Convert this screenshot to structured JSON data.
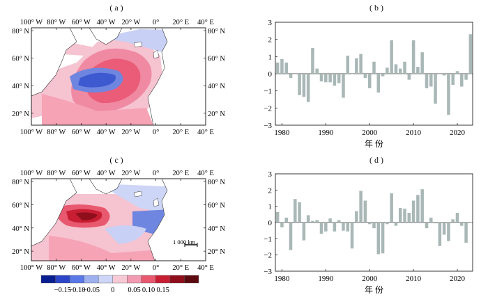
{
  "panels": {
    "a": "( a )",
    "b": "( b )",
    "c": "( c )",
    "d": "( d )"
  },
  "maps": {
    "lon_ticks": [
      "100° W",
      "80° W",
      "60° W",
      "40° W",
      "20° W",
      "0°",
      "20° E",
      "40° E"
    ],
    "lat_ticks": [
      "80° N",
      "60° N",
      "40° N",
      "20° N"
    ],
    "scale_bar": "1 000 km"
  },
  "colorbar": {
    "ticks": [
      "−0.15",
      "−0.10",
      "−0.05",
      "0",
      "0.05",
      "0.10",
      "0.15"
    ],
    "colors": [
      "#0a1f8f",
      "#2c45c8",
      "#5a78e6",
      "#9fb0ef",
      "#cdd6f7",
      "#f7c9d6",
      "#f19ab2",
      "#e8586f",
      "#c81e33",
      "#8f0e1c",
      "#5c0a10"
    ]
  },
  "colors": {
    "bar": "#a9b8b6",
    "ocean_pos": "#f28ba1",
    "ocean_pos_strong": "#ea5c78",
    "ocean_neg": "#c9d0f5",
    "ocean_neg_strong": "#6f86e0"
  },
  "chart_data": [
    {
      "type": "bar",
      "panel": "b",
      "x": [
        1979,
        1980,
        1981,
        1982,
        1983,
        1984,
        1985,
        1986,
        1987,
        1988,
        1989,
        1990,
        1991,
        1992,
        1993,
        1994,
        1995,
        1996,
        1997,
        1998,
        1999,
        2000,
        2001,
        2002,
        2003,
        2004,
        2005,
        2006,
        2007,
        2008,
        2009,
        2010,
        2011,
        2012,
        2013,
        2014,
        2015,
        2016,
        2017,
        2018,
        2019,
        2020,
        2021,
        2022,
        2023
      ],
      "values": [
        0.65,
        0.85,
        0.65,
        -0.25,
        0.0,
        -1.25,
        -1.35,
        -1.65,
        1.5,
        0.3,
        -0.45,
        -0.5,
        -0.5,
        -0.7,
        -0.55,
        -1.4,
        1.05,
        0.0,
        0.9,
        1.15,
        -0.25,
        -0.85,
        0.7,
        -1.1,
        -0.15,
        0.35,
        1.95,
        0.55,
        0.3,
        0.7,
        -0.35,
        1.95,
        0.4,
        1.25,
        -0.85,
        -0.75,
        -1.75,
        0.0,
        -0.1,
        -2.4,
        -0.65,
        0.15,
        -0.75,
        -0.35,
        2.3
      ],
      "xticks": [
        "1980",
        "1990",
        "2000",
        "2010",
        "2020"
      ],
      "yticks": [
        "3",
        "2",
        "1",
        "0",
        "−1",
        "−2",
        "−3"
      ],
      "xlabel": "年 份",
      "ylim": [
        -3,
        3
      ]
    },
    {
      "type": "bar",
      "panel": "d",
      "x": [
        1979,
        1980,
        1981,
        1982,
        1983,
        1984,
        1985,
        1986,
        1987,
        1988,
        1989,
        1990,
        1991,
        1992,
        1993,
        1994,
        1995,
        1996,
        1997,
        1998,
        1999,
        2000,
        2001,
        2002,
        2003,
        2004,
        2005,
        2006,
        2007,
        2008,
        2009,
        2010,
        2011,
        2012,
        2013,
        2014,
        2015,
        2016,
        2017,
        2018,
        2019,
        2020,
        2021,
        2022,
        2023
      ],
      "values": [
        0.65,
        -0.3,
        0.3,
        -1.7,
        1.45,
        1.25,
        -1.1,
        0.45,
        0.1,
        0.15,
        -0.7,
        -0.55,
        0.25,
        -0.55,
        0.15,
        -0.5,
        -0.55,
        -1.6,
        0.7,
        1.95,
        1.35,
        -0.1,
        -0.35,
        -1.95,
        -1.9,
        -0.1,
        1.8,
        -0.2,
        0.9,
        0.85,
        0.6,
        1.35,
        1.7,
        2.05,
        -0.35,
        0.3,
        -0.05,
        -1.45,
        -0.75,
        -1.15,
        0.2,
        0.6,
        -0.2,
        -1.25,
        0.0
      ],
      "xticks": [
        "1980",
        "1990",
        "2000",
        "2010",
        "2020"
      ],
      "yticks": [
        "3",
        "2",
        "1",
        "0",
        "−1",
        "−2",
        "−3"
      ],
      "xlabel": "年 份",
      "ylim": [
        -3,
        3
      ]
    }
  ]
}
